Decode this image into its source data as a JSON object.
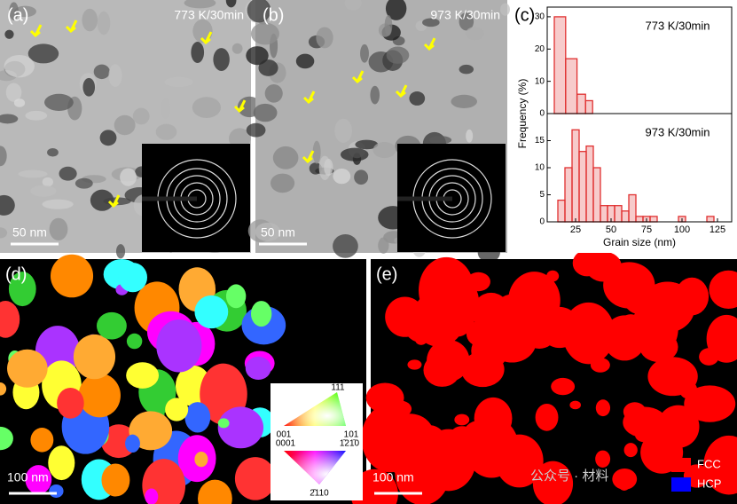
{
  "panels": {
    "a": {
      "label": "(a)",
      "condition": "773 K/30min",
      "scale_bar": "50 nm"
    },
    "b": {
      "label": "(b)",
      "condition": "973 K/30min",
      "scale_bar": "50 nm"
    },
    "c": {
      "label": "(c)"
    },
    "d": {
      "label": "(d)",
      "scale_bar": "100 nm",
      "ipf": {
        "top": "111",
        "left_cubic": "001",
        "right_cubic": "101",
        "left_hex": "0001",
        "right_hex": "1̄21̄0",
        "bottom_hex": "2̄110"
      }
    },
    "e": {
      "label": "(e)",
      "scale_bar": "100 nm",
      "legend": [
        {
          "name": "FCC",
          "color": "#ff0000"
        },
        {
          "name": "HCP",
          "color": "#0000ff"
        }
      ],
      "watermark": "公众号 · 材料"
    }
  },
  "chart_data": [
    {
      "type": "histogram",
      "annotation": "773 K/30min",
      "ylabel": "Frequency (%)",
      "color": "#e03030",
      "bins": [
        10,
        18,
        26,
        32,
        37
      ],
      "values": [
        30,
        17,
        6,
        4
      ],
      "xlim": [
        5,
        135
      ],
      "ylim": [
        0,
        33
      ],
      "yticks": [
        0,
        10,
        20,
        30
      ]
    },
    {
      "type": "histogram",
      "annotation": "973 K/30min",
      "xlabel": "Grain size (nm)",
      "color": "#e03030",
      "bins": [
        12.5,
        17.5,
        22.5,
        27.5,
        32.5,
        37.5,
        42.5,
        47.5,
        52.5,
        57.5,
        62.5,
        67.5,
        72.5,
        77.5,
        82.5,
        87.5,
        92.5,
        97.5,
        102.5,
        107.5,
        112.5,
        117.5,
        122.5,
        127.5
      ],
      "values": [
        4,
        10,
        17,
        13,
        14,
        10,
        3,
        3,
        3,
        2,
        5,
        1,
        1,
        1,
        0,
        0,
        0,
        1,
        0,
        0,
        0,
        1,
        0
      ],
      "xlim": [
        5,
        135
      ],
      "ylim": [
        0,
        20
      ],
      "yticks": [
        0,
        5,
        10,
        15
      ],
      "xticks": [
        25,
        50,
        75,
        100,
        125
      ]
    }
  ]
}
